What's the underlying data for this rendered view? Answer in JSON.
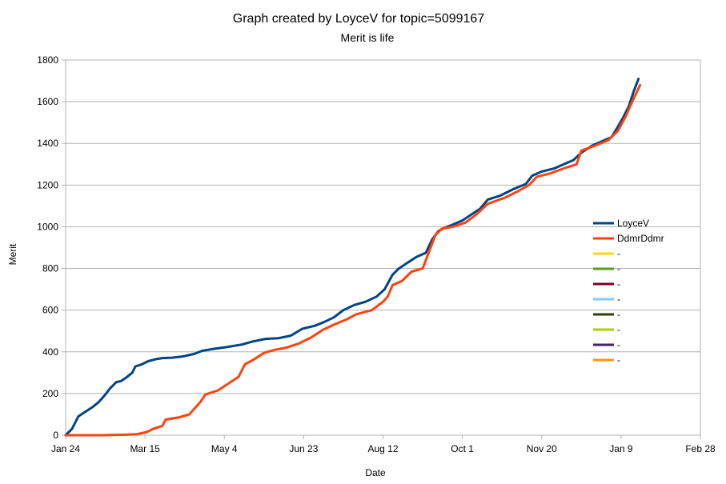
{
  "chart_data": {
    "type": "line",
    "title": "Graph created by LoyceV for topic=5099167",
    "subtitle": "Merit is life",
    "xlabel": "Date",
    "ylabel": "Merit",
    "ylim": [
      0,
      1800
    ],
    "yticks": [
      0,
      200,
      400,
      600,
      800,
      1000,
      1200,
      1400,
      1600,
      1800
    ],
    "xlim": [
      "Jan 24",
      "Feb 28"
    ],
    "xticks": [
      "Jan 24",
      "Mar 15",
      "May 4",
      "Jun 23",
      "Aug 12",
      "Oct 1",
      "Nov 20",
      "Jan 9",
      "Feb 28"
    ],
    "grid": "horizontal",
    "legend_position": "right",
    "series": [
      {
        "name": "LoyceV",
        "color": "#004586",
        "points": [
          [
            "Jan 24",
            0
          ],
          [
            "Jan 28",
            30
          ],
          [
            "Feb 1",
            90
          ],
          [
            "Feb 5",
            110
          ],
          [
            "Feb 10",
            135
          ],
          [
            "Feb 14",
            160
          ],
          [
            "Feb 18",
            195
          ],
          [
            "Feb 21",
            225
          ],
          [
            "Feb 25",
            255
          ],
          [
            "Feb 28",
            260
          ],
          [
            "Mar 3",
            275
          ],
          [
            "Mar 7",
            300
          ],
          [
            "Mar 9",
            330
          ],
          [
            "Mar 13",
            340
          ],
          [
            "Mar 17",
            355
          ],
          [
            "Mar 22",
            365
          ],
          [
            "Mar 26",
            370
          ],
          [
            "Apr 1",
            372
          ],
          [
            "Apr 8",
            378
          ],
          [
            "Apr 15",
            390
          ],
          [
            "Apr 20",
            405
          ],
          [
            "Apr 28",
            415
          ],
          [
            "May 5",
            422
          ],
          [
            "May 15",
            435
          ],
          [
            "May 22",
            450
          ],
          [
            "May 30",
            462
          ],
          [
            "Jun 7",
            465
          ],
          [
            "Jun 15",
            478
          ],
          [
            "Jun 22",
            510
          ],
          [
            "Jun 30",
            525
          ],
          [
            "Jul 5",
            540
          ],
          [
            "Jul 12",
            565
          ],
          [
            "Jul 18",
            600
          ],
          [
            "Jul 25",
            625
          ],
          [
            "Aug 1",
            640
          ],
          [
            "Aug 8",
            665
          ],
          [
            "Aug 13",
            700
          ],
          [
            "Aug 18",
            770
          ],
          [
            "Aug 22",
            800
          ],
          [
            "Aug 28",
            830
          ],
          [
            "Sep 2",
            855
          ],
          [
            "Sep 8",
            875
          ],
          [
            "Sep 12",
            940
          ],
          [
            "Sep 16",
            980
          ],
          [
            "Sep 20",
            995
          ],
          [
            "Sep 25",
            1010
          ],
          [
            "Oct 1",
            1030
          ],
          [
            "Oct 7",
            1060
          ],
          [
            "Oct 12",
            1085
          ],
          [
            "Oct 17",
            1130
          ],
          [
            "Oct 25",
            1150
          ],
          [
            "Nov 2",
            1180
          ],
          [
            "Nov 10",
            1205
          ],
          [
            "Nov 14",
            1245
          ],
          [
            "Nov 20",
            1265
          ],
          [
            "Nov 28",
            1280
          ],
          [
            "Dec 4",
            1300
          ],
          [
            "Dec 10",
            1320
          ],
          [
            "Dec 15",
            1355
          ],
          [
            "Dec 22",
            1390
          ],
          [
            "Dec 28",
            1410
          ],
          [
            "Jan 3",
            1430
          ],
          [
            "Jan 7",
            1480
          ],
          [
            "Jan 10",
            1520
          ],
          [
            "Jan 14",
            1580
          ],
          [
            "Jan 17",
            1650
          ],
          [
            "Jan 20",
            1710
          ]
        ]
      },
      {
        "name": "DdmrDdmr",
        "color": "#ff420e",
        "points": [
          [
            "Jan 24",
            0
          ],
          [
            "Feb 15",
            0
          ],
          [
            "Mar 1",
            2
          ],
          [
            "Mar 10",
            5
          ],
          [
            "Mar 16",
            15
          ],
          [
            "Mar 20",
            30
          ],
          [
            "Mar 26",
            45
          ],
          [
            "Mar 28",
            75
          ],
          [
            "Apr 5",
            85
          ],
          [
            "Apr 12",
            100
          ],
          [
            "Apr 19",
            160
          ],
          [
            "Apr 22",
            195
          ],
          [
            "Apr 30",
            215
          ],
          [
            "May 6",
            245
          ],
          [
            "May 13",
            280
          ],
          [
            "May 17",
            340
          ],
          [
            "May 23",
            365
          ],
          [
            "May 29",
            395
          ],
          [
            "Jun 5",
            410
          ],
          [
            "Jun 12",
            420
          ],
          [
            "Jun 20",
            440
          ],
          [
            "Jun 28",
            470
          ],
          [
            "Jul 5",
            505
          ],
          [
            "Jul 12",
            530
          ],
          [
            "Jul 20",
            555
          ],
          [
            "Jul 26",
            580
          ],
          [
            "Aug 5",
            600
          ],
          [
            "Aug 12",
            640
          ],
          [
            "Aug 15",
            665
          ],
          [
            "Aug 18",
            720
          ],
          [
            "Aug 24",
            740
          ],
          [
            "Aug 30",
            785
          ],
          [
            "Sep 6",
            800
          ],
          [
            "Sep 10",
            880
          ],
          [
            "Sep 14",
            960
          ],
          [
            "Sep 18",
            990
          ],
          [
            "Sep 25",
            1000
          ],
          [
            "Oct 3",
            1020
          ],
          [
            "Oct 10",
            1060
          ],
          [
            "Oct 17",
            1110
          ],
          [
            "Oct 28",
            1140
          ],
          [
            "Nov 5",
            1170
          ],
          [
            "Nov 12",
            1200
          ],
          [
            "Nov 17",
            1240
          ],
          [
            "Nov 25",
            1255
          ],
          [
            "Dec 4",
            1280
          ],
          [
            "Dec 12",
            1300
          ],
          [
            "Dec 15",
            1365
          ],
          [
            "Dec 24",
            1390
          ],
          [
            "Jan 1",
            1415
          ],
          [
            "Jan 7",
            1460
          ],
          [
            "Jan 12",
            1530
          ],
          [
            "Jan 16",
            1600
          ],
          [
            "Jan 21",
            1680
          ]
        ]
      },
      {
        "name": "-",
        "color": "#ffd320",
        "points": []
      },
      {
        "name": "-",
        "color": "#579d1c",
        "points": []
      },
      {
        "name": "-",
        "color": "#7e0021",
        "points": []
      },
      {
        "name": "-",
        "color": "#83caff",
        "points": []
      },
      {
        "name": "-",
        "color": "#314004",
        "points": []
      },
      {
        "name": "-",
        "color": "#aecf00",
        "points": []
      },
      {
        "name": "-",
        "color": "#4b1f6f",
        "points": []
      },
      {
        "name": "-",
        "color": "#ff950e",
        "points": []
      }
    ]
  }
}
